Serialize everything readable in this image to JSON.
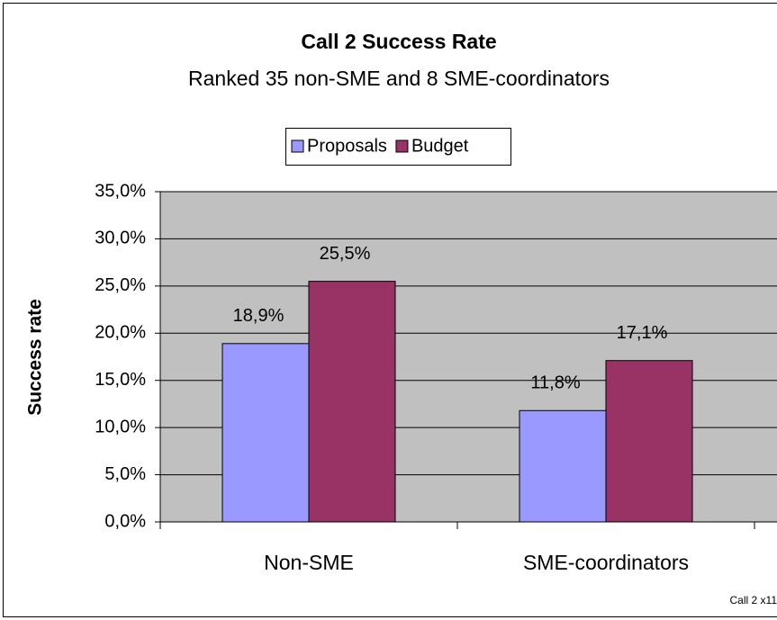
{
  "chart_data": {
    "type": "bar",
    "title": "Call 2 Success Rate",
    "subtitle": "Ranked 35 non-SME and 8 SME-coordinators",
    "y_label": "Success rate",
    "footnote": "Call 2 x11",
    "categories": [
      "Non-SME",
      "SME-coordinators"
    ],
    "series": [
      {
        "name": "Proposals",
        "color": "#9999ff",
        "values": [
          18.9,
          11.8
        ],
        "value_labels": [
          "18,9%",
          "11,8%"
        ]
      },
      {
        "name": "Budget",
        "color": "#993366",
        "values": [
          25.5,
          17.1
        ],
        "value_labels": [
          "25,5%",
          "17,1%"
        ]
      }
    ],
    "ylim": [
      0,
      35
    ],
    "yticks": [
      {
        "value": 0,
        "label": "0,0%"
      },
      {
        "value": 5,
        "label": "5,0%"
      },
      {
        "value": 10,
        "label": "10,0%"
      },
      {
        "value": 15,
        "label": "15,0%"
      },
      {
        "value": 20,
        "label": "20,0%"
      },
      {
        "value": 25,
        "label": "25,0%"
      },
      {
        "value": 30,
        "label": "30,0%"
      },
      {
        "value": 35,
        "label": "35,0%"
      }
    ],
    "grid": true,
    "legend": "top"
  }
}
